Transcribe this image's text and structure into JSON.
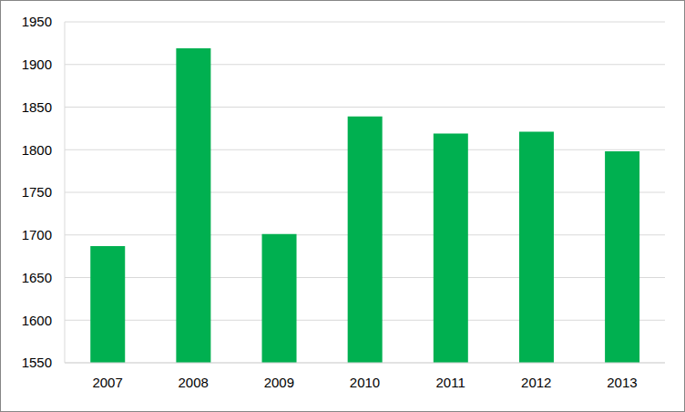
{
  "chart_data": {
    "type": "bar",
    "categories": [
      "2007",
      "2008",
      "2009",
      "2010",
      "2011",
      "2012",
      "2013"
    ],
    "values": [
      1687,
      1919,
      1701,
      1839,
      1819,
      1821,
      1798
    ],
    "color": "#00b050",
    "ylim": [
      1550,
      1950
    ],
    "yticks": [
      1550,
      1600,
      1650,
      1700,
      1750,
      1800,
      1850,
      1900,
      1950
    ],
    "grid": true
  }
}
